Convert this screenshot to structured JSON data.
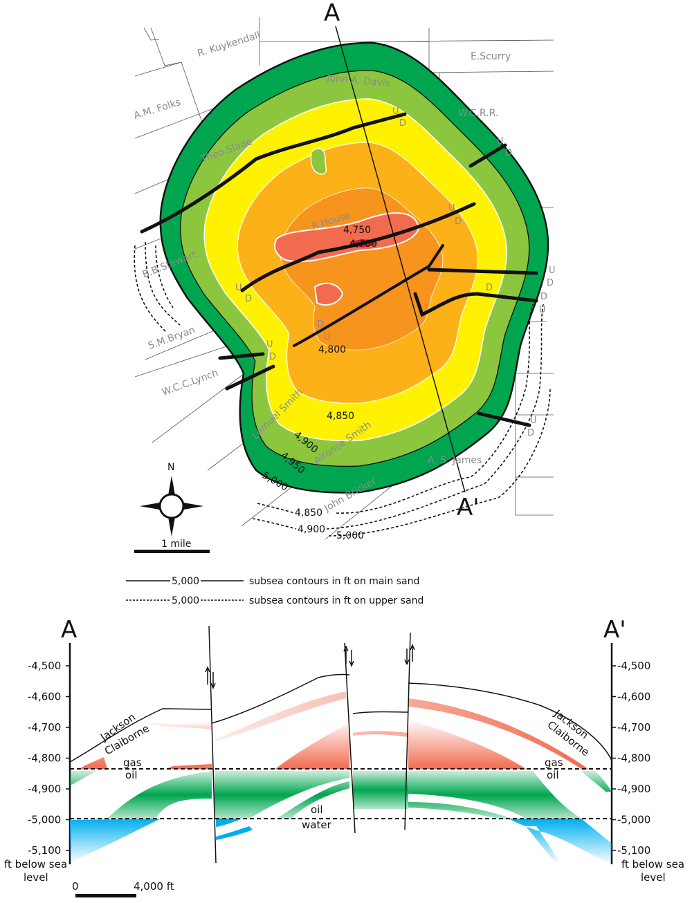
{
  "map": {
    "section_start": "A",
    "section_end": "A'",
    "owners": [
      "R. Kuykendall",
      "E.Scurry",
      "John A. Davis",
      "A.M. Folks",
      "W.C.R.R.",
      "Theo Slade",
      "R.House",
      "B.B.Stewart",
      "S.M.Bryan",
      "W.C.C.Lynch",
      "Lemuel Smith",
      "Alfonse Smith",
      "A. S. James",
      "John Bricker"
    ],
    "contour_labels": [
      "4,750",
      "4,700",
      "4,800",
      "4,850",
      "4,900",
      "4,950",
      "5,000"
    ],
    "upper_sand_labels": [
      "4,850",
      "4,900",
      "5,000"
    ],
    "fault_up": "U",
    "fault_down": "D",
    "north": "N",
    "scale": "1 mile",
    "zone_colors": [
      "#00a64f",
      "#8cc63f",
      "#fff200",
      "#fbb117",
      "#f7941d",
      "#f26b4f",
      "#c1272d"
    ]
  },
  "legend": {
    "solid_value": "5,000",
    "solid_text": "subsea contours in ft on main sand",
    "dashed_value": "5,000",
    "dashed_text": "subsea contours in ft on upper sand"
  },
  "section": {
    "left_label": "A",
    "right_label": "A'",
    "ticks": [
      "-4,500",
      "-4,600",
      "-4,700",
      "-4,800",
      "-4,900",
      "-5,000",
      "-5,100"
    ],
    "axis_unit": [
      "ft below sea",
      "level"
    ],
    "formation_upper": "Jackson",
    "formation_lower": "Claiborne",
    "gas": "gas",
    "oil": "oil",
    "oil_center": "oil",
    "water": "water",
    "scale_start": "0",
    "scale_end": "4,000 ft",
    "colors": {
      "gas": "#f26b4f",
      "oil": "#00a64f",
      "water": "#00aeef"
    }
  }
}
